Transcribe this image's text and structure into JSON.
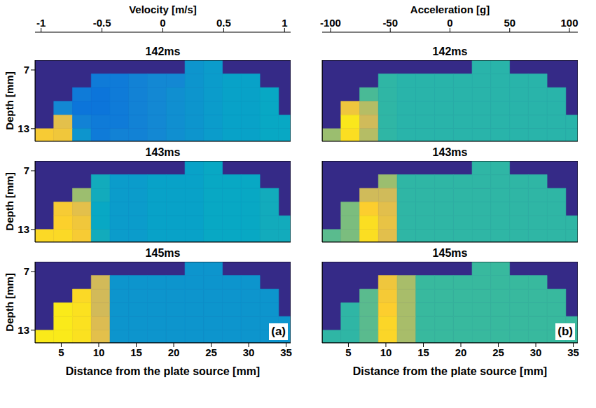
{
  "chart_data": [
    {
      "type": "heatmap",
      "x_label": "Distance from the plate source [mm]",
      "y_label": "Depth [mm]",
      "annotation": "(a)",
      "tick_labels": true,
      "xlim": [
        1.5,
        35.6
      ],
      "ylim": [
        14.3,
        6
      ],
      "xticks": [
        5,
        10,
        15,
        20,
        25,
        30,
        35
      ],
      "yticks": [
        7,
        13
      ],
      "x_edges": [
        1.5,
        4,
        6.5,
        9,
        11.5,
        14,
        16.5,
        19,
        21.5,
        24,
        26.5,
        29,
        31.5,
        34,
        36.5
      ],
      "y_edges": [
        6,
        7.4,
        8.8,
        10.2,
        11.6,
        13,
        14.4
      ],
      "colorbar": {
        "label": "Velocity [m/s]",
        "range": [
          -1.05,
          1.05
        ],
        "ticks": [
          -1,
          -0.5,
          0,
          0.5,
          1
        ]
      },
      "panels": [
        {
          "title": "142ms",
          "cells": [
            [
              null,
              null,
              null,
              null,
              null,
              null,
              null,
              null,
              -0.4,
              -0.35,
              null,
              null,
              null,
              null
            ],
            [
              null,
              null,
              null,
              -0.6,
              -0.6,
              -0.55,
              -0.5,
              -0.5,
              -0.4,
              -0.35,
              -0.3,
              -0.3,
              null,
              null
            ],
            [
              null,
              null,
              -0.6,
              -0.65,
              -0.6,
              -0.55,
              -0.5,
              -0.45,
              -0.4,
              -0.35,
              -0.3,
              -0.3,
              -0.25,
              null
            ],
            [
              null,
              -0.5,
              -0.65,
              -0.65,
              -0.6,
              -0.55,
              -0.5,
              -0.45,
              -0.4,
              -0.35,
              -0.3,
              -0.3,
              -0.25,
              null
            ],
            [
              null,
              0.6,
              -0.55,
              -0.6,
              -0.6,
              -0.55,
              -0.5,
              -0.45,
              -0.4,
              -0.35,
              -0.3,
              -0.3,
              -0.25,
              -0.25
            ],
            [
              0.75,
              0.7,
              -0.4,
              -0.6,
              -0.55,
              -0.55,
              -0.5,
              -0.45,
              -0.4,
              -0.35,
              -0.3,
              -0.3,
              -0.25,
              -0.25
            ]
          ]
        },
        {
          "title": "143ms",
          "cells": [
            [
              null,
              null,
              null,
              null,
              null,
              null,
              null,
              null,
              -0.3,
              -0.25,
              null,
              null,
              null,
              null
            ],
            [
              null,
              null,
              null,
              -0.2,
              -0.35,
              -0.35,
              -0.3,
              -0.3,
              -0.3,
              -0.25,
              -0.25,
              -0.25,
              null,
              null
            ],
            [
              null,
              null,
              0.3,
              -0.2,
              -0.35,
              -0.35,
              -0.3,
              -0.3,
              -0.3,
              -0.25,
              -0.25,
              -0.25,
              -0.2,
              null
            ],
            [
              null,
              0.75,
              0.6,
              -0.25,
              -0.35,
              -0.35,
              -0.3,
              -0.3,
              -0.3,
              -0.25,
              -0.25,
              -0.25,
              -0.2,
              null
            ],
            [
              null,
              0.8,
              0.7,
              -0.25,
              -0.35,
              -0.35,
              -0.3,
              -0.3,
              -0.3,
              -0.25,
              -0.25,
              -0.25,
              -0.2,
              -0.2
            ],
            [
              0.85,
              0.85,
              0.75,
              -0.2,
              -0.35,
              -0.35,
              -0.3,
              -0.3,
              -0.3,
              -0.25,
              -0.25,
              -0.25,
              -0.2,
              -0.2
            ]
          ]
        },
        {
          "title": "145ms",
          "cells": [
            [
              null,
              null,
              null,
              null,
              null,
              null,
              null,
              null,
              -0.4,
              -0.4,
              null,
              null,
              null,
              null
            ],
            [
              null,
              null,
              null,
              0.5,
              -0.4,
              -0.4,
              -0.4,
              -0.4,
              -0.4,
              -0.4,
              -0.4,
              -0.4,
              null,
              null
            ],
            [
              null,
              null,
              0.85,
              0.5,
              -0.4,
              -0.4,
              -0.4,
              -0.4,
              -0.4,
              -0.4,
              -0.4,
              -0.4,
              -0.4,
              null
            ],
            [
              null,
              0.95,
              0.9,
              0.5,
              -0.4,
              -0.4,
              -0.4,
              -0.4,
              -0.4,
              -0.4,
              -0.4,
              -0.4,
              -0.4,
              null
            ],
            [
              null,
              0.95,
              0.9,
              0.55,
              -0.4,
              -0.4,
              -0.4,
              -0.4,
              -0.4,
              -0.4,
              -0.4,
              -0.4,
              -0.4,
              -0.4
            ],
            [
              0.95,
              0.95,
              0.9,
              0.6,
              -0.4,
              -0.4,
              -0.4,
              -0.4,
              -0.4,
              -0.4,
              -0.4,
              -0.4,
              -0.4,
              -0.4
            ]
          ]
        }
      ]
    },
    {
      "type": "heatmap",
      "x_label": "Distance from the plate source [mm]",
      "annotation": "(b)",
      "tick_labels": "x",
      "xlim": [
        1.5,
        35.6
      ],
      "ylim": [
        14.3,
        6
      ],
      "xticks": [
        5,
        10,
        15,
        20,
        25,
        30,
        35
      ],
      "yticks": [
        7,
        13
      ],
      "x_edges": [
        1.5,
        4,
        6.5,
        9,
        11.5,
        14,
        16.5,
        19,
        21.5,
        24,
        26.5,
        29,
        31.5,
        34,
        36.5
      ],
      "y_edges": [
        6,
        7.4,
        8.8,
        10.2,
        11.6,
        13,
        14.4
      ],
      "colorbar": {
        "label": "Acceleration [g]",
        "range": [
          -107,
          107
        ],
        "ticks": [
          -100,
          -50,
          0,
          50,
          100
        ]
      },
      "panels": [
        {
          "title": "142ms",
          "cells": [
            [
              null,
              null,
              null,
              null,
              null,
              null,
              null,
              null,
              -8,
              -8,
              null,
              null,
              null,
              null
            ],
            [
              null,
              null,
              null,
              -5,
              -8,
              -8,
              -8,
              -8,
              -8,
              -8,
              -8,
              -8,
              null,
              null
            ],
            [
              null,
              null,
              5,
              -5,
              -8,
              -8,
              -8,
              -8,
              -8,
              -8,
              -8,
              -8,
              -8,
              null
            ],
            [
              null,
              70,
              40,
              -5,
              -8,
              -8,
              -8,
              -8,
              -8,
              -8,
              -8,
              -8,
              -8,
              null
            ],
            [
              null,
              95,
              50,
              -5,
              -8,
              -8,
              -8,
              -8,
              -8,
              -8,
              -8,
              -8,
              -8,
              -8
            ],
            [
              30,
              90,
              40,
              -5,
              -8,
              -8,
              -8,
              -8,
              -8,
              -8,
              -8,
              -8,
              -8,
              -8
            ]
          ]
        },
        {
          "title": "143ms",
          "cells": [
            [
              null,
              null,
              null,
              null,
              null,
              null,
              null,
              null,
              -5,
              -5,
              null,
              null,
              null,
              null
            ],
            [
              null,
              null,
              null,
              30,
              -5,
              -5,
              -5,
              -5,
              -5,
              -5,
              -5,
              -5,
              null,
              null
            ],
            [
              null,
              null,
              50,
              50,
              -5,
              -5,
              -5,
              -5,
              -5,
              -5,
              -5,
              -5,
              -5,
              null
            ],
            [
              null,
              20,
              80,
              60,
              -5,
              -5,
              -5,
              -5,
              -5,
              -5,
              -5,
              -5,
              -5,
              null
            ],
            [
              null,
              20,
              90,
              65,
              -5,
              -5,
              -5,
              -5,
              -5,
              -5,
              -5,
              -5,
              -5,
              -5
            ],
            [
              10,
              20,
              90,
              60,
              -5,
              -5,
              -5,
              -5,
              -5,
              -5,
              -5,
              -5,
              -5,
              -5
            ]
          ]
        },
        {
          "title": "145ms",
          "cells": [
            [
              null,
              null,
              null,
              null,
              null,
              null,
              null,
              null,
              0,
              0,
              null,
              null,
              null,
              null
            ],
            [
              null,
              null,
              null,
              70,
              35,
              0,
              0,
              0,
              0,
              0,
              0,
              0,
              null,
              null
            ],
            [
              null,
              null,
              10,
              75,
              35,
              0,
              0,
              0,
              0,
              0,
              0,
              0,
              0,
              null
            ],
            [
              null,
              -5,
              10,
              80,
              35,
              0,
              0,
              0,
              0,
              0,
              0,
              0,
              0,
              null
            ],
            [
              null,
              -5,
              10,
              85,
              35,
              0,
              0,
              0,
              0,
              0,
              0,
              0,
              0,
              0
            ],
            [
              -5,
              -5,
              10,
              85,
              35,
              0,
              0,
              0,
              0,
              0,
              0,
              0,
              0,
              0
            ]
          ]
        }
      ]
    }
  ]
}
